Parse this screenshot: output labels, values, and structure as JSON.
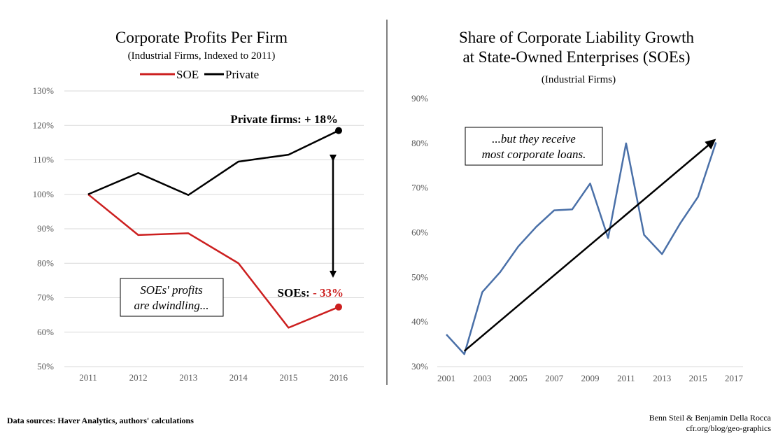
{
  "chart_data": [
    {
      "type": "line",
      "title": "Corporate Profits Per Firm",
      "subtitle": "(Industrial  Firms,  Indexed to 2011)",
      "x": [
        2011,
        2012,
        2013,
        2014,
        2015,
        2016
      ],
      "x_ticks": [
        "2011",
        "2012",
        "2013",
        "2014",
        "2015",
        "2016"
      ],
      "y_ticks": [
        "130%",
        "120%",
        "110%",
        "100%",
        "90%",
        "80%",
        "70%",
        "60%",
        "50%"
      ],
      "ylim": [
        50,
        130
      ],
      "y_unit": "%",
      "grid": true,
      "legend": "top-center",
      "series": [
        {
          "name": "SOE",
          "color": "#cc1f1f",
          "x": [
            2011,
            2012,
            2013,
            2014,
            2015,
            2016
          ],
          "values": [
            100,
            88.2,
            88.7,
            80,
            61.3,
            67.3
          ]
        },
        {
          "name": "Private",
          "color": "#000000",
          "x": [
            2011,
            2012,
            2013,
            2014,
            2015,
            2016
          ],
          "values": [
            100,
            106.2,
            99.8,
            109.5,
            111.5,
            118.5
          ]
        }
      ],
      "annotations": {
        "private_label": "Private firms: + 18%",
        "soe_label_prefix": "SOEs:",
        "soe_label_value": " - 33%",
        "callout_line1": "SOEs' profits",
        "callout_line2": "are dwindling..."
      }
    },
    {
      "type": "line",
      "title_line1": "Share of Corporate Liability Growth",
      "title_line2": "at State-Owned Enterprises (SOEs)",
      "subtitle": "(Industrial Firms)",
      "x_ticks": [
        "2001",
        "2003",
        "2005",
        "2007",
        "2009",
        "2011",
        "2013",
        "2015",
        "2017"
      ],
      "y_ticks": [
        "90%",
        "80%",
        "70%",
        "60%",
        "50%",
        "40%",
        "30%"
      ],
      "xlim": [
        2000.5,
        2017.5
      ],
      "ylim": [
        30,
        90
      ],
      "y_unit": "%",
      "grid": false,
      "series": [
        {
          "name": "",
          "color": "#4a70a8",
          "x": [
            2001,
            2002,
            2003,
            2004,
            2005,
            2006,
            2007,
            2008,
            2009,
            2010,
            2011,
            2012,
            2013,
            2014,
            2015,
            2016
          ],
          "values": [
            37.2,
            32.8,
            46.7,
            51.2,
            56.9,
            61.3,
            65,
            65.2,
            71,
            58.8,
            80,
            59.5,
            55.2,
            62,
            68,
            80.2
          ]
        }
      ],
      "trend_arrow": {
        "x": [
          2002,
          2016
        ],
        "values": [
          33.5,
          81
        ]
      },
      "annotations": {
        "callout_line1": "...but they receive",
        "callout_line2": "most corporate loans."
      }
    }
  ],
  "footer": {
    "sources": "Data sources: Haver Analytics, authors' calculations",
    "credit_line1": "Benn Steil & Benjamin Della Rocca",
    "credit_line2": "cfr.org/blog/geo-graphics"
  }
}
